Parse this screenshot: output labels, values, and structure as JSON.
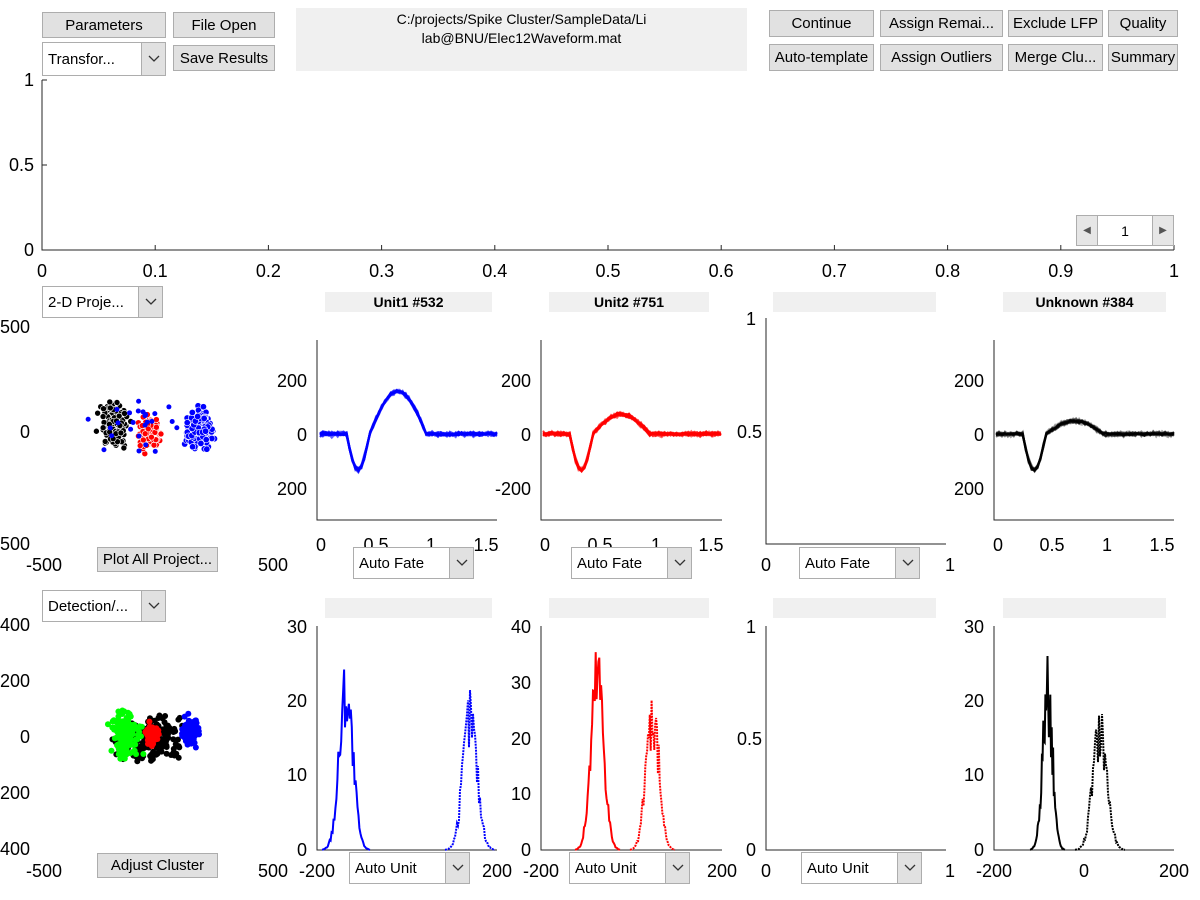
{
  "toolbar": {
    "parameters": "Parameters",
    "file_open": "File Open",
    "save_results": "Save Results",
    "transform_select": "Transfor...",
    "continue": "Continue",
    "assign_remaining": "Assign Remai...",
    "exclude_lfp": "Exclude LFP",
    "quality": "Quality",
    "auto_template": "Auto-template",
    "assign_outliers": "Assign Outliers",
    "merge_clusters": "Merge Clu...",
    "summary": "Summary"
  },
  "file_path": {
    "line1": "C:/projects/Spike Cluster/SampleData/Li",
    "line2": "lab@BNU/Elec12Waveform.mat"
  },
  "top_axes": {
    "x_ticks": [
      "0",
      "0.1",
      "0.2",
      "0.3",
      "0.4",
      "0.5",
      "0.6",
      "0.7",
      "0.8",
      "0.9",
      "1"
    ],
    "y_ticks": [
      "0",
      "0.5",
      "1"
    ]
  },
  "page_slider": {
    "value": "1"
  },
  "projection": {
    "select": "2-D Proje...",
    "button": "Plot All Project...",
    "x_ticks": [
      "-500",
      "500"
    ],
    "y_ticks": [
      "500",
      "0",
      "500"
    ]
  },
  "detection": {
    "select": "Detection/...",
    "button": "Adjust Cluster",
    "x_ticks": [
      "-500",
      "500"
    ],
    "y_ticks": [
      "400",
      "200",
      "0",
      "200",
      "400"
    ]
  },
  "units": [
    {
      "label": "Unit1 #532",
      "color": "#0000ff",
      "fate": "Auto Fate",
      "unit_select": "Auto Unit"
    },
    {
      "label": "Unit2 #751",
      "color": "#ff0000",
      "fate": "Auto Fate",
      "unit_select": "Auto Unit"
    },
    {
      "label": "",
      "color": "#000000",
      "fate": "Auto Fate",
      "unit_select": "Auto Unit"
    },
    {
      "label": "Unknown #384",
      "color": "#000000",
      "fate": "",
      "unit_select": ""
    }
  ],
  "waveform_axes": {
    "x_ticks": [
      "0",
      "0.5",
      "1",
      "1.5"
    ],
    "y_ticks_unit1": [
      "200",
      "0",
      "200"
    ],
    "y_ticks_unit2": [
      "200",
      "0",
      "-200"
    ],
    "y_ticks_empty": [
      "1",
      "0.5"
    ],
    "x_ticks_empty": [
      "0",
      "1"
    ]
  },
  "hist_axes": {
    "x_ticks": [
      "-200",
      "200"
    ],
    "x_ticks_last": [
      "-200",
      "0",
      "200"
    ],
    "y_ticks_a": [
      "30",
      "20",
      "10",
      "0"
    ],
    "y_ticks_b": [
      "40",
      "30",
      "20",
      "10",
      "0"
    ],
    "y_ticks_empty": [
      "1",
      "0.5",
      "0"
    ],
    "x_ticks_empty": [
      "0",
      "1"
    ]
  },
  "icons": {
    "dropdown": "chevron-down-icon",
    "left": "arrow-left-icon",
    "right": "arrow-right-icon"
  }
}
